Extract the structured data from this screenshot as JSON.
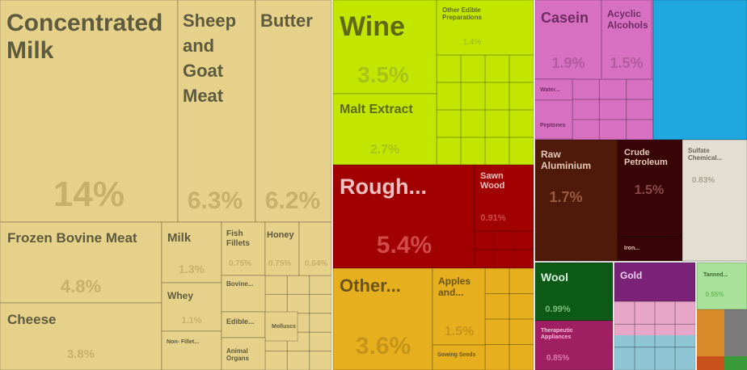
{
  "chart_data": {
    "type": "treemap",
    "tiles": [
      {
        "name": "Concentrated Milk",
        "value": "14%",
        "color": "#e6d18a"
      },
      {
        "name": "Sheep and Goat Meat",
        "value": "6.3%",
        "color": "#e6d18a"
      },
      {
        "name": "Butter",
        "value": "6.2%",
        "color": "#e6d18a"
      },
      {
        "name": "Frozen Bovine Meat",
        "value": "4.8%",
        "color": "#e6d18a"
      },
      {
        "name": "Cheese",
        "value": "3.8%",
        "color": "#e6d18a"
      },
      {
        "name": "Milk",
        "value": "1.3%",
        "color": "#e6d18a"
      },
      {
        "name": "Whey",
        "value": "1.1%",
        "color": "#e6d18a"
      },
      {
        "name": "Fish Fillets",
        "value": "0.75%",
        "color": "#e6d18a"
      },
      {
        "name": "Honey",
        "value": "0.75%",
        "color": "#e6d18a"
      },
      {
        "name": "",
        "value": "0.64%",
        "color": "#e6d18a"
      },
      {
        "name": "Non- Fillet...",
        "value": "",
        "color": "#e6d18a"
      },
      {
        "name": "Bovine...",
        "value": "",
        "color": "#e6d18a"
      },
      {
        "name": "Edible...",
        "value": "",
        "color": "#e6d18a"
      },
      {
        "name": "Molluscs",
        "value": "",
        "color": "#e6d18a"
      },
      {
        "name": "Animal Organs",
        "value": "",
        "color": "#e6d18a"
      },
      {
        "name": "Wine",
        "value": "3.5%",
        "color": "#c2e600"
      },
      {
        "name": "Other Edible Preparations",
        "value": "1.4%",
        "color": "#c2e600"
      },
      {
        "name": "Malt Extract",
        "value": "2.7%",
        "color": "#c2e600"
      },
      {
        "name": "Rough...",
        "value": "5.4%",
        "color": "#a00000"
      },
      {
        "name": "Sawn Wood",
        "value": "0.91%",
        "color": "#a00000"
      },
      {
        "name": "Other...",
        "value": "3.6%",
        "color": "#e6af1e"
      },
      {
        "name": "Apples and...",
        "value": "1.5%",
        "color": "#e6af1e"
      },
      {
        "name": "Sowing Seeds",
        "value": "",
        "color": "#e6af1e"
      },
      {
        "name": "Casein",
        "value": "1.9%",
        "color": "#d870c2"
      },
      {
        "name": "Acyclic Alcohols",
        "value": "1.5%",
        "color": "#d870c2"
      },
      {
        "name": "Water...",
        "value": "",
        "color": "#d870c2"
      },
      {
        "name": "Peptones",
        "value": "",
        "color": "#d870c2"
      },
      {
        "name": "",
        "value": "",
        "color": "#1fa8df"
      },
      {
        "name": "Raw Aluminium",
        "value": "1.7%",
        "color": "#4f1a0a"
      },
      {
        "name": "Crude Petroleum",
        "value": "1.5%",
        "color": "#380406"
      },
      {
        "name": "Iron...",
        "value": "",
        "color": "#380406"
      },
      {
        "name": "Sulfate Chemical...",
        "value": "0.83%",
        "color": "#e4ded0"
      },
      {
        "name": "Wool",
        "value": "0.99%",
        "color": "#0d5a17"
      },
      {
        "name": "Therapeutic Appliances",
        "value": "0.85%",
        "color": "#a01f62"
      },
      {
        "name": "Gold",
        "value": "",
        "color": "#7a2378"
      },
      {
        "name": "Tanned...",
        "value": "0.55%",
        "color": "#a8e19a"
      }
    ]
  }
}
